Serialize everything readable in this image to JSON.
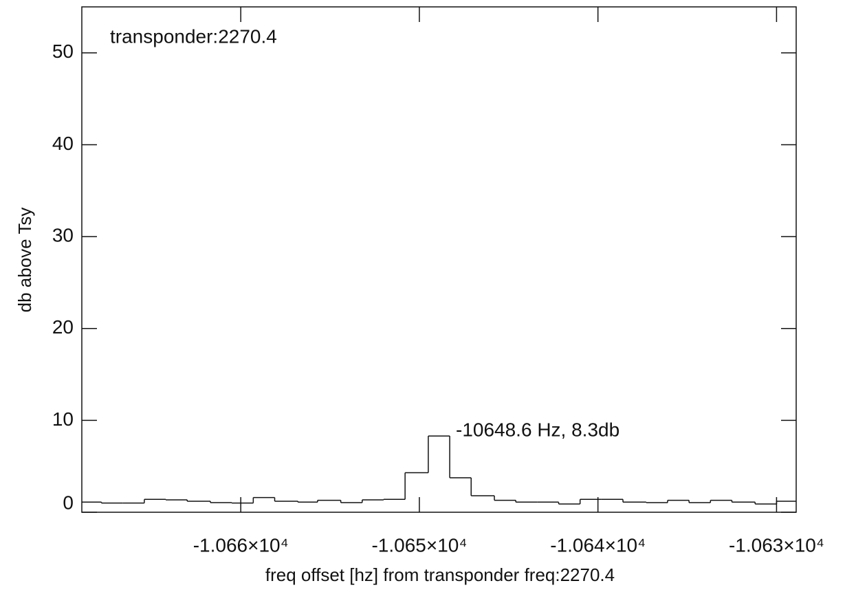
{
  "chart_data": {
    "type": "histogram",
    "xlabel": "freq offset [hz] from transponder freq:2270.4",
    "ylabel": "db above Tsy",
    "annotations": [
      "transponder:2270.4",
      "-10648.6 Hz, 8.3db"
    ],
    "bins": [
      -10668.9,
      -10667.8,
      -10666.6,
      -10665.4,
      -10664.2,
      -10663.0,
      -10661.7,
      -10660.5,
      -10659.3,
      -10658.1,
      -10656.8,
      -10655.7,
      -10654.4,
      -10653.2,
      -10652.0,
      -10650.8,
      -10649.5,
      -10648.3,
      -10647.1,
      -10645.8,
      -10644.6,
      -10643.4,
      -10642.2,
      -10641.0,
      -10639.8,
      -10638.6,
      -10637.3,
      -10636.1,
      -10634.9,
      -10633.7,
      -10632.5,
      -10631.2,
      -10630.0,
      -10628.9
    ],
    "values": [
      1.1,
      1.0,
      1.0,
      1.4,
      1.35,
      1.2,
      1.05,
      1.0,
      1.6,
      1.2,
      1.1,
      1.3,
      1.05,
      1.35,
      1.4,
      4.3,
      8.3,
      3.75,
      1.8,
      1.3,
      1.1,
      1.1,
      0.9,
      1.4,
      1.4,
      1.1,
      1.05,
      1.3,
      1.05,
      1.3,
      1.1,
      0.9,
      1.2
    ],
    "color": "#111111",
    "xlim": [
      -10668.9,
      -10628.9
    ],
    "ylim": [
      0,
      55
    ],
    "xticks": [
      {
        "value": -10660,
        "label": "-1.066×10⁴"
      },
      {
        "value": -10650,
        "label": "-1.065×10⁴"
      },
      {
        "value": -10640,
        "label": "-1.064×10⁴"
      },
      {
        "value": -10630,
        "label": "-1.063×10⁴"
      }
    ],
    "yticks": [
      0,
      10,
      20,
      30,
      40,
      50
    ],
    "grid": false
  }
}
